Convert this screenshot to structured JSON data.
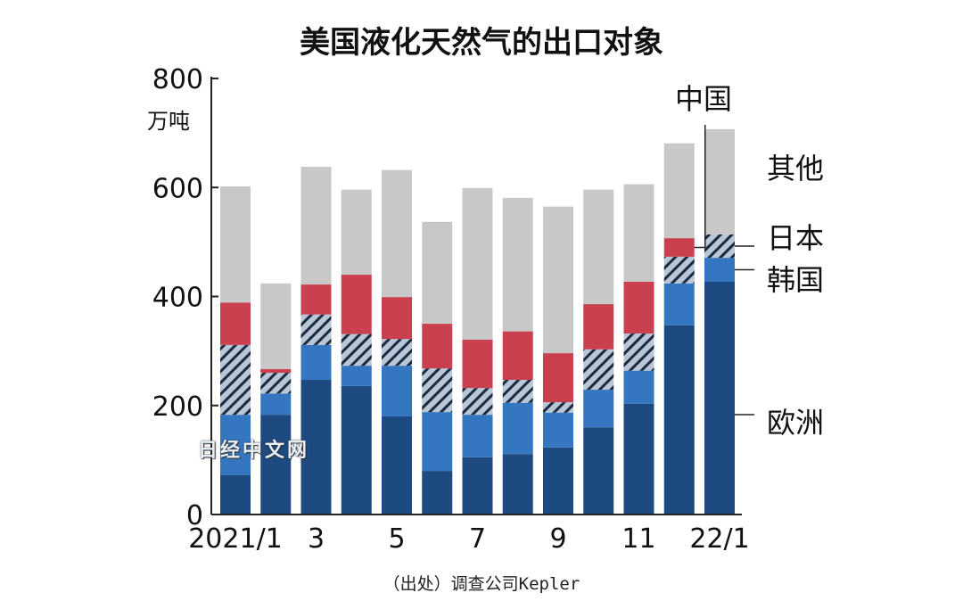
{
  "chart_data": {
    "type": "bar",
    "stacked": true,
    "title": "美国液化天然气的出口对象",
    "ylabel": "万吨",
    "ylim": [
      0,
      800
    ],
    "yticks": [
      0,
      200,
      400,
      600,
      800
    ],
    "grid": false,
    "categories": [
      "2021/1",
      "2",
      "3",
      "4",
      "5",
      "6",
      "7",
      "8",
      "9",
      "10",
      "11",
      "12",
      "22/1"
    ],
    "xtick_labels": [
      "2021/1",
      "",
      "3",
      "",
      "5",
      "",
      "7",
      "",
      "9",
      "",
      "11",
      "",
      "22/1"
    ],
    "series": [
      {
        "name": "欧洲",
        "color": "#1d4a80",
        "values": [
          72,
          183,
          247,
          236,
          180,
          80,
          105,
          111,
          123,
          160,
          203,
          347,
          427
        ]
      },
      {
        "name": "韩国",
        "color": "#3576c1",
        "values": [
          111,
          39,
          64,
          37,
          93,
          108,
          78,
          94,
          64,
          69,
          61,
          77,
          44
        ]
      },
      {
        "name": "日本",
        "color": "#b9c6d6",
        "pattern": "hatched",
        "values": [
          128,
          38,
          56,
          58,
          49,
          80,
          49,
          42,
          19,
          74,
          68,
          49,
          43
        ]
      },
      {
        "name": "中国",
        "color": "#c9404f",
        "values": [
          78,
          7,
          55,
          109,
          77,
          82,
          89,
          89,
          90,
          83,
          95,
          34,
          0
        ]
      },
      {
        "name": "其他",
        "color": "#c8c8c8",
        "values": [
          213,
          157,
          216,
          156,
          233,
          187,
          278,
          245,
          269,
          210,
          179,
          174,
          193
        ]
      }
    ],
    "legend_placement": "right (direct labels)"
  },
  "source": "（出处）调查公司Kepler",
  "watermark": "日经中文网"
}
